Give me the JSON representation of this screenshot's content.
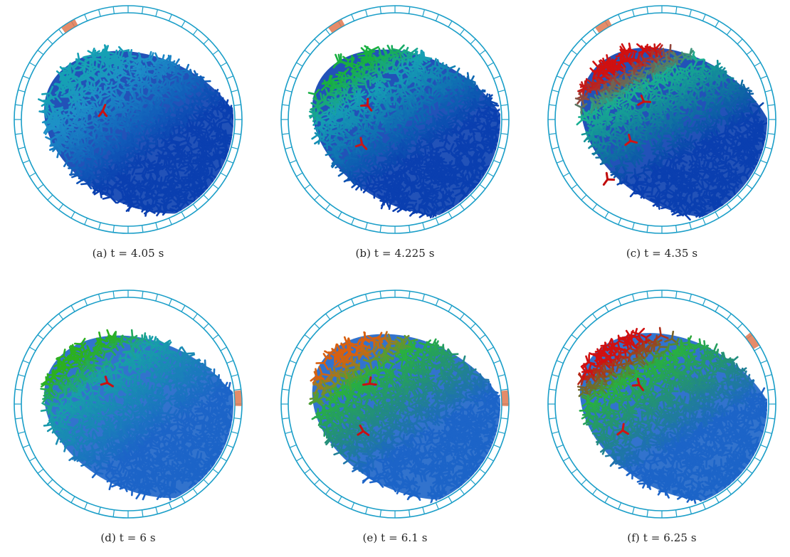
{
  "figure": {
    "panels": [
      {
        "caption": "(a) t = 4.05 s",
        "pile": {
          "angle_deg": -35,
          "colors": {
            "base": "#0a3fb0",
            "surface": "#1e90c8",
            "tip": "#16a0b4"
          }
        },
        "accent_segment": "top-left",
        "flying_colors": [
          "#cc1010"
        ]
      },
      {
        "caption": "(b) t = 4.225 s",
        "pile": {
          "angle_deg": -32,
          "colors": {
            "base": "#0a3fb0",
            "surface": "#16a0b4",
            "tip": "#18b040"
          }
        },
        "accent_segment": "top-left",
        "flying_colors": [
          "#cc1010",
          "#c81818"
        ]
      },
      {
        "caption": "(c) t = 4.35 s",
        "pile": {
          "angle_deg": -28,
          "colors": {
            "base": "#0a3fb0",
            "surface": "#18b090",
            "tip": "#d01010"
          }
        },
        "accent_segment": "top-left",
        "flying_colors": [
          "#cc1010",
          "#d01414",
          "#c00a0a"
        ]
      },
      {
        "caption": "(d) t = 6 s",
        "pile": {
          "angle_deg": -35,
          "colors": {
            "base": "#1c64c8",
            "surface": "#18a0a8",
            "tip": "#2cb020"
          }
        },
        "accent_segment": "right",
        "flying_colors": [
          "#cc1010"
        ]
      },
      {
        "caption": "(e) t = 6.1 s",
        "pile": {
          "angle_deg": -32,
          "colors": {
            "base": "#1c64c8",
            "surface": "#28b040",
            "tip": "#d86010"
          }
        },
        "accent_segment": "right",
        "flying_colors": [
          "#cc1010",
          "#c81010"
        ]
      },
      {
        "caption": "(f) t = 6.25 s",
        "pile": {
          "angle_deg": -30,
          "colors": {
            "base": "#1c64c8",
            "surface": "#28b040",
            "tip": "#d01010"
          }
        },
        "accent_segment": "top-right",
        "flying_colors": [
          "#cc1010",
          "#d01414"
        ]
      }
    ],
    "drum_colors": {
      "ring": "#1a9ec8",
      "accent": "#e07850"
    }
  }
}
